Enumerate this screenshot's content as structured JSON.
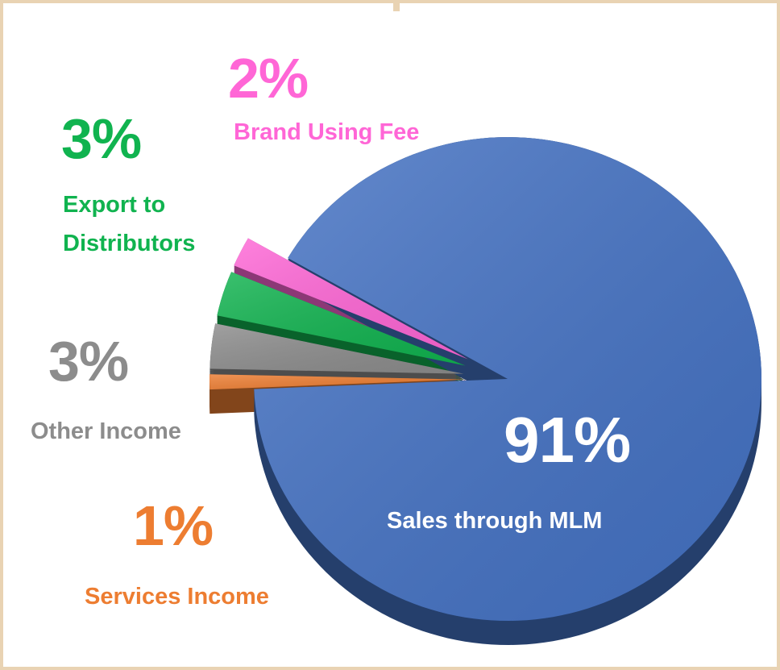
{
  "chart_data": {
    "type": "pie",
    "categories": [
      "Sales through MLM",
      "Services Income",
      "Other Income",
      "Export to Distributors",
      "Brand Using Fee"
    ],
    "values": [
      91,
      1,
      3,
      3,
      2
    ],
    "value_labels": [
      "91%",
      "1%",
      "3%",
      "3%",
      "2%"
    ],
    "colors": [
      "#4472c4",
      "#ed7d31",
      "#8c8c8c",
      "#10b34f",
      "#ff66d6"
    ]
  }
}
